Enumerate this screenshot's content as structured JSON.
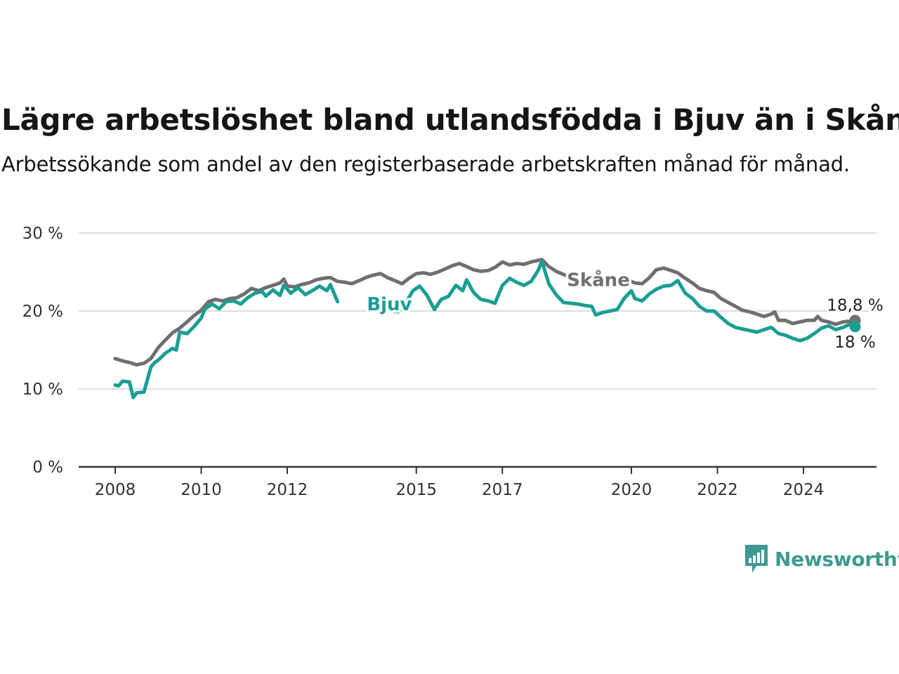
{
  "header": {
    "title": "Lägre arbetslöshet bland utlandsfödda i Bjuv än i Skåne",
    "subtitle": "Arbetssökande som andel av den registerbaserade arbetskraften månad för månad."
  },
  "brand": {
    "name": "Newsworthy",
    "icon": "newsworthy-logo-icon",
    "color": "#3d9a93"
  },
  "chart_data": {
    "type": "line",
    "title": "Lägre arbetslöshet bland utlandsfödda i Bjuv än i Skåne",
    "subtitle": "Arbetssökande som andel av den registerbaserade arbetskraften månad för månad.",
    "xlabel": "",
    "ylabel": "",
    "xlim": [
      2008,
      2025.6
    ],
    "ylim": [
      0,
      30
    ],
    "x_ticks": [
      {
        "value": 2008,
        "label": "2008"
      },
      {
        "value": 2010,
        "label": "2010"
      },
      {
        "value": 2012,
        "label": "2012"
      },
      {
        "value": 2015,
        "label": "2015"
      },
      {
        "value": 2017,
        "label": "2017"
      },
      {
        "value": 2020,
        "label": "2020"
      },
      {
        "value": 2022,
        "label": "2022"
      },
      {
        "value": 2024,
        "label": "2024"
      }
    ],
    "y_ticks": [
      {
        "value": 0,
        "label": "0 %"
      },
      {
        "value": 10,
        "label": "10 %"
      },
      {
        "value": 20,
        "label": "20 %"
      },
      {
        "value": 30,
        "label": "30 %"
      }
    ],
    "grid": "horizontal",
    "series": [
      {
        "name": "Skåne",
        "color": "#6f6e73",
        "end_label": "18,8 %",
        "points": [
          [
            2008.0,
            13.9
          ],
          [
            2008.17,
            13.6
          ],
          [
            2008.33,
            13.4
          ],
          [
            2008.5,
            13.1
          ],
          [
            2008.67,
            13.3
          ],
          [
            2008.83,
            13.9
          ],
          [
            2009.0,
            15.3
          ],
          [
            2009.17,
            16.3
          ],
          [
            2009.33,
            17.2
          ],
          [
            2009.5,
            17.8
          ],
          [
            2009.67,
            18.6
          ],
          [
            2009.83,
            19.4
          ],
          [
            2010.0,
            20.1
          ],
          [
            2010.17,
            21.2
          ],
          [
            2010.33,
            21.5
          ],
          [
            2010.5,
            21.3
          ],
          [
            2010.67,
            21.6
          ],
          [
            2010.83,
            21.7
          ],
          [
            2011.0,
            22.2
          ],
          [
            2011.17,
            22.9
          ],
          [
            2011.33,
            22.6
          ],
          [
            2011.5,
            23.0
          ],
          [
            2011.67,
            23.3
          ],
          [
            2011.83,
            23.6
          ],
          [
            2011.92,
            24.1
          ],
          [
            2012.0,
            23.2
          ],
          [
            2012.17,
            23.1
          ],
          [
            2012.33,
            23.4
          ],
          [
            2012.5,
            23.6
          ],
          [
            2012.67,
            24.0
          ],
          [
            2012.83,
            24.2
          ],
          [
            2013.0,
            24.3
          ],
          [
            2013.17,
            23.8
          ],
          [
            2013.33,
            23.7
          ],
          [
            2013.5,
            23.5
          ],
          [
            2013.67,
            23.9
          ],
          [
            2013.83,
            24.3
          ],
          [
            2014.0,
            24.6
          ],
          [
            2014.17,
            24.8
          ],
          [
            2014.33,
            24.3
          ],
          [
            2014.5,
            23.9
          ],
          [
            2014.67,
            23.5
          ],
          [
            2014.83,
            24.2
          ],
          [
            2015.0,
            24.8
          ],
          [
            2015.17,
            24.9
          ],
          [
            2015.33,
            24.7
          ],
          [
            2015.5,
            25.0
          ],
          [
            2015.67,
            25.4
          ],
          [
            2015.83,
            25.8
          ],
          [
            2016.0,
            26.1
          ],
          [
            2016.17,
            25.7
          ],
          [
            2016.33,
            25.3
          ],
          [
            2016.5,
            25.1
          ],
          [
            2016.67,
            25.2
          ],
          [
            2016.83,
            25.6
          ],
          [
            2017.0,
            26.3
          ],
          [
            2017.17,
            25.9
          ],
          [
            2017.33,
            26.1
          ],
          [
            2017.5,
            26.0
          ],
          [
            2017.67,
            26.3
          ],
          [
            2017.83,
            26.5
          ],
          [
            2017.92,
            26.6
          ],
          [
            2018.08,
            25.7
          ],
          [
            2018.25,
            25.1
          ],
          [
            2018.42,
            24.7
          ],
          [
            2018.58,
            24.3
          ],
          [
            2018.75,
            24.1
          ],
          [
            2018.92,
            24.0
          ],
          [
            2019.08,
            24.1
          ],
          [
            2019.25,
            24.0
          ],
          [
            2019.42,
            24.1
          ],
          [
            2019.58,
            24.0
          ],
          [
            2019.75,
            23.9
          ],
          [
            2019.92,
            24.0
          ],
          [
            2020.08,
            23.6
          ],
          [
            2020.25,
            23.5
          ],
          [
            2020.42,
            24.3
          ],
          [
            2020.58,
            25.3
          ],
          [
            2020.75,
            25.5
          ],
          [
            2020.92,
            25.2
          ],
          [
            2021.08,
            24.9
          ],
          [
            2021.25,
            24.2
          ],
          [
            2021.42,
            23.6
          ],
          [
            2021.58,
            22.9
          ],
          [
            2021.75,
            22.6
          ],
          [
            2021.92,
            22.4
          ],
          [
            2022.08,
            21.6
          ],
          [
            2022.25,
            21.1
          ],
          [
            2022.42,
            20.6
          ],
          [
            2022.58,
            20.1
          ],
          [
            2022.75,
            19.9
          ],
          [
            2022.92,
            19.6
          ],
          [
            2023.08,
            19.3
          ],
          [
            2023.25,
            19.6
          ],
          [
            2023.33,
            19.9
          ],
          [
            2023.42,
            18.8
          ],
          [
            2023.58,
            18.8
          ],
          [
            2023.75,
            18.4
          ],
          [
            2023.92,
            18.6
          ],
          [
            2024.08,
            18.8
          ],
          [
            2024.25,
            18.8
          ],
          [
            2024.33,
            19.3
          ],
          [
            2024.42,
            18.8
          ],
          [
            2024.58,
            18.6
          ],
          [
            2024.75,
            18.3
          ],
          [
            2024.92,
            18.6
          ],
          [
            2025.08,
            18.7
          ],
          [
            2025.2,
            18.8
          ]
        ]
      },
      {
        "name": "Bjuv",
        "color": "#1a9e93",
        "end_label": "18 %",
        "points": [
          [
            2008.0,
            10.5
          ],
          [
            2008.08,
            10.4
          ],
          [
            2008.17,
            11.0
          ],
          [
            2008.33,
            10.9
          ],
          [
            2008.42,
            8.9
          ],
          [
            2008.5,
            9.5
          ],
          [
            2008.67,
            9.6
          ],
          [
            2008.83,
            12.8
          ],
          [
            2008.92,
            13.4
          ],
          [
            2009.0,
            13.7
          ],
          [
            2009.17,
            14.6
          ],
          [
            2009.33,
            15.2
          ],
          [
            2009.42,
            15.0
          ],
          [
            2009.5,
            17.3
          ],
          [
            2009.67,
            17.1
          ],
          [
            2009.83,
            18.0
          ],
          [
            2010.0,
            19.1
          ],
          [
            2010.08,
            20.2
          ],
          [
            2010.25,
            20.9
          ],
          [
            2010.42,
            20.3
          ],
          [
            2010.58,
            21.2
          ],
          [
            2010.75,
            21.3
          ],
          [
            2010.92,
            20.9
          ],
          [
            2011.08,
            21.7
          ],
          [
            2011.25,
            22.3
          ],
          [
            2011.42,
            22.5
          ],
          [
            2011.5,
            21.9
          ],
          [
            2011.67,
            22.7
          ],
          [
            2011.83,
            22.0
          ],
          [
            2011.92,
            23.3
          ],
          [
            2012.08,
            22.3
          ],
          [
            2012.25,
            23.0
          ],
          [
            2012.42,
            22.1
          ],
          [
            2012.58,
            22.6
          ],
          [
            2012.75,
            23.2
          ],
          [
            2012.92,
            22.6
          ],
          [
            2013.0,
            23.4
          ],
          [
            2013.17,
            21.2
          ],
          null,
          [
            2014.42,
            20.0
          ],
          [
            2014.58,
            19.9
          ],
          [
            2014.75,
            21.0
          ],
          [
            2014.92,
            22.6
          ],
          [
            2015.08,
            23.2
          ],
          [
            2015.25,
            22.0
          ],
          [
            2015.42,
            20.2
          ],
          [
            2015.58,
            21.5
          ],
          [
            2015.75,
            21.9
          ],
          [
            2015.92,
            23.3
          ],
          [
            2016.08,
            22.6
          ],
          [
            2016.17,
            24.0
          ],
          [
            2016.33,
            22.4
          ],
          [
            2016.5,
            21.5
          ],
          [
            2016.67,
            21.3
          ],
          [
            2016.83,
            21.0
          ],
          [
            2017.0,
            23.3
          ],
          [
            2017.17,
            24.2
          ],
          [
            2017.33,
            23.7
          ],
          [
            2017.5,
            23.3
          ],
          [
            2017.67,
            23.8
          ],
          [
            2017.83,
            25.2
          ],
          [
            2017.92,
            26.4
          ],
          [
            2018.08,
            23.5
          ],
          [
            2018.25,
            22.1
          ],
          [
            2018.42,
            21.1
          ],
          [
            2018.58,
            21.0
          ],
          [
            2018.75,
            20.9
          ],
          [
            2018.92,
            20.7
          ],
          [
            2019.08,
            20.6
          ],
          [
            2019.17,
            19.5
          ],
          [
            2019.33,
            19.8
          ],
          [
            2019.5,
            20.0
          ],
          [
            2019.67,
            20.2
          ],
          [
            2019.83,
            21.6
          ],
          [
            2020.0,
            22.6
          ],
          [
            2020.08,
            21.6
          ],
          [
            2020.25,
            21.3
          ],
          [
            2020.42,
            22.2
          ],
          [
            2020.58,
            22.8
          ],
          [
            2020.75,
            23.2
          ],
          [
            2020.92,
            23.3
          ],
          [
            2021.08,
            23.9
          ],
          [
            2021.25,
            22.3
          ],
          [
            2021.42,
            21.6
          ],
          [
            2021.58,
            20.6
          ],
          [
            2021.75,
            20.0
          ],
          [
            2021.92,
            20.0
          ],
          [
            2022.08,
            19.2
          ],
          [
            2022.25,
            18.4
          ],
          [
            2022.42,
            17.9
          ],
          [
            2022.58,
            17.7
          ],
          [
            2022.75,
            17.5
          ],
          [
            2022.92,
            17.3
          ],
          [
            2023.08,
            17.6
          ],
          [
            2023.25,
            17.9
          ],
          [
            2023.42,
            17.1
          ],
          [
            2023.58,
            16.9
          ],
          [
            2023.75,
            16.5
          ],
          [
            2023.92,
            16.2
          ],
          [
            2024.08,
            16.5
          ],
          [
            2024.25,
            17.1
          ],
          [
            2024.42,
            17.8
          ],
          [
            2024.58,
            18.1
          ],
          [
            2024.75,
            17.6
          ],
          [
            2024.92,
            17.9
          ],
          [
            2025.08,
            18.3
          ],
          [
            2025.2,
            18.0
          ]
        ]
      }
    ],
    "series_labels": [
      {
        "series": "Skåne",
        "text": "Skåne",
        "x": 2018.5,
        "y": 24.0
      },
      {
        "series": "Bjuv",
        "text": "Bjuv",
        "x": 2013.85,
        "y": 20.9
      }
    ]
  }
}
